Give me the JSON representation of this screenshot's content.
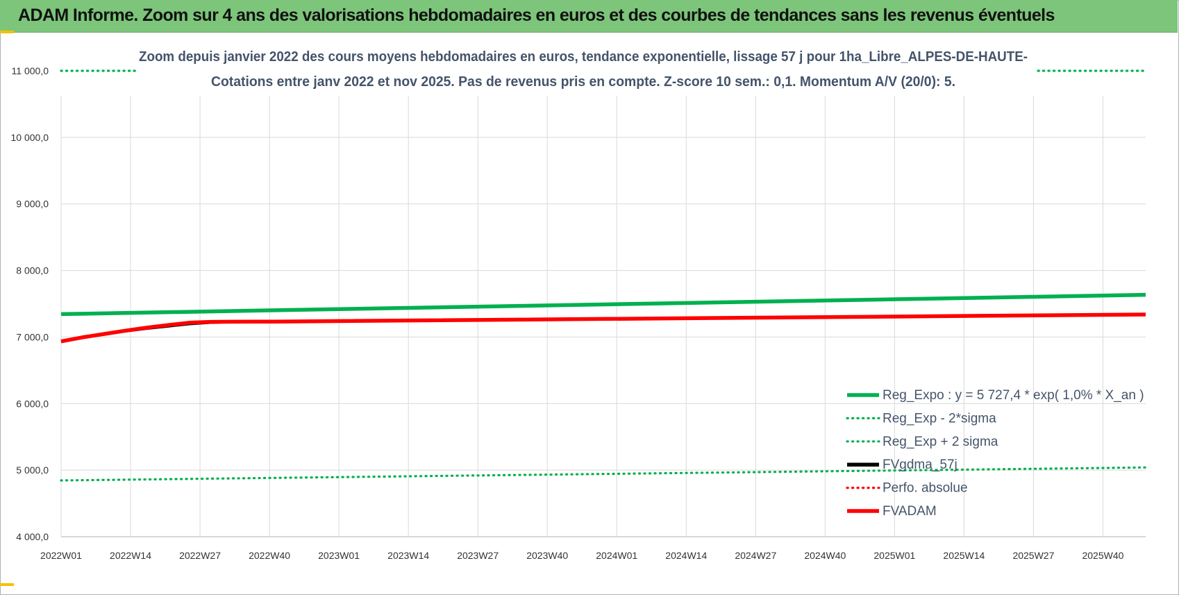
{
  "banner": {
    "title": "ADAM Informe. Zoom sur 4 ans des valorisations hebdomadaires en euros et des courbes de tendances sans les revenus éventuels"
  },
  "chart_data": {
    "type": "line",
    "title": "Zoom depuis janvier 2022 des cours moyens hebdomadaires en euros, tendance exponentielle, lissage 57 j pour 1ha_Libre_ALPES-DE-HAUTE-",
    "subtitle": "Cotations entre janv 2022 et nov 2025. Pas de revenus pris en compte. Z-score 10 sem.: 0,1. Momentum A/V (20/0): 5.",
    "xlabel": "",
    "ylabel": "",
    "ylim": [
      4000,
      11000
    ],
    "y_ticks": [
      "4 000,0",
      "5 000,0",
      "6 000,0",
      "7 000,0",
      "8 000,0",
      "9 000,0",
      "10 000,0",
      "11 000,0"
    ],
    "x_ticks": [
      "2022W01",
      "2022W14",
      "2022W27",
      "2022W40",
      "2023W01",
      "2023W14",
      "2023W27",
      "2023W40",
      "2024W01",
      "2024W14",
      "2024W27",
      "2024W40",
      "2025W01",
      "2025W14",
      "2025W27",
      "2025W40"
    ],
    "x_range_weeks": [
      0,
      203
    ],
    "grid": true,
    "legend_position": "bottom-right",
    "series": [
      {
        "name": "Reg_Expo : y = 5 727,4 * exp( 1,0% *  X_an )",
        "color": "#00b050",
        "style": "solid",
        "x": [
          0,
          203
        ],
        "y": [
          7345,
          7635
        ]
      },
      {
        "name": "Reg_Exp - 2*sigma",
        "color": "#00b050",
        "style": "dotted",
        "x": [
          0,
          203
        ],
        "y": [
          4845,
          5040
        ]
      },
      {
        "name": "Reg_Exp + 2 sigma",
        "color": "#00b050",
        "style": "dotted",
        "x": [
          0,
          203
        ],
        "y": [
          11000,
          11000
        ]
      },
      {
        "name": "FVgdma_57j",
        "color": "#000000",
        "style": "solid",
        "x": [
          0,
          4,
          8,
          12,
          16,
          20,
          24,
          28,
          32,
          36,
          40,
          203
        ],
        "y": [
          6935,
          6990,
          7040,
          7085,
          7125,
          7160,
          7195,
          7215,
          7225,
          7230,
          7232,
          7338
        ]
      },
      {
        "name": "Perfo. absolue",
        "color": "#ff0000",
        "style": "dotted",
        "x": [],
        "y": []
      },
      {
        "name": "FVADAM",
        "color": "#ff0000",
        "style": "solid",
        "x": [
          0,
          4,
          8,
          12,
          16,
          20,
          24,
          28,
          32,
          36,
          40,
          203
        ],
        "y": [
          6935,
          6995,
          7045,
          7095,
          7140,
          7180,
          7215,
          7228,
          7230,
          7231,
          7232,
          7338
        ]
      }
    ]
  }
}
